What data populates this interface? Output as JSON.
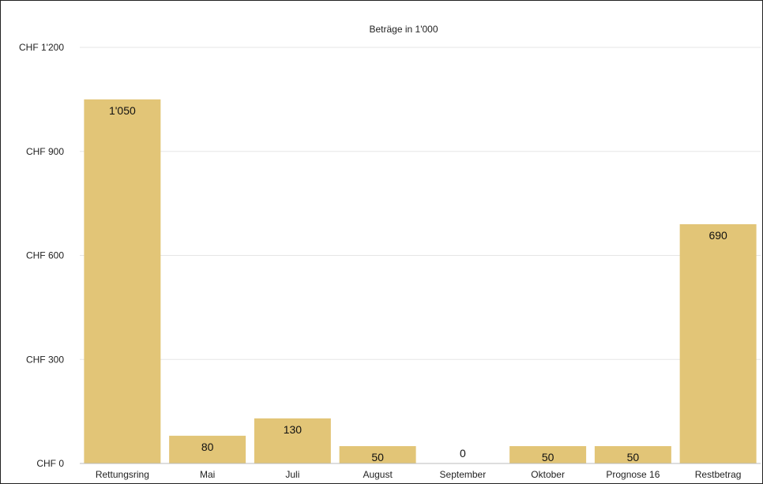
{
  "chart_data": {
    "type": "bar",
    "title": "Beträge in 1'000",
    "categories": [
      "Rettungsring",
      "Mai",
      "Juli",
      "August",
      "September",
      "Oktober",
      "Prognose 16",
      "Restbetrag"
    ],
    "values": [
      1050,
      80,
      130,
      50,
      0,
      50,
      50,
      690
    ],
    "value_labels": [
      "1'050",
      "80",
      "130",
      "50",
      "0",
      "50",
      "50",
      "690"
    ],
    "y_ticks": [
      0,
      300,
      600,
      900,
      1200
    ],
    "y_tick_labels": [
      "CHF 0",
      "CHF 300",
      "CHF 600",
      "CHF 900",
      "CHF 1'200"
    ],
    "ylim": [
      0,
      1200
    ],
    "grid": true,
    "legend": "none",
    "bar_color": "#e2c577",
    "grid_color": "#e6e6e6"
  }
}
